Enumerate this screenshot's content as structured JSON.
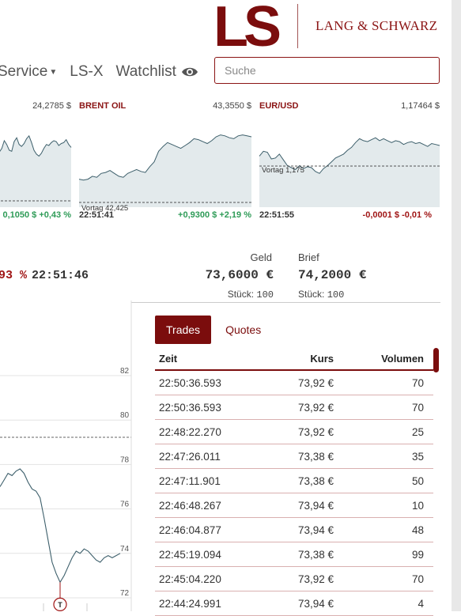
{
  "header": {
    "logo_mark": "LS",
    "brand": "LANG & SCHWARZ",
    "nav": [
      {
        "label": "Service",
        "has_caret": true
      },
      {
        "label": "LS-X",
        "has_caret": false
      },
      {
        "label": "Watchlist",
        "icon": "eye-icon"
      }
    ],
    "search_placeholder": "Suche"
  },
  "tickers": [
    {
      "name": "",
      "price": "24,2785 $",
      "time": "",
      "change": "0,1050 $ +0,43 %",
      "direction": "up",
      "series": [
        55,
        62,
        66,
        74,
        70,
        64,
        63,
        73,
        77,
        70,
        68,
        71,
        76,
        79,
        72,
        64,
        60,
        58,
        61,
        66,
        70,
        69,
        72,
        74,
        73,
        69,
        71,
        72,
        75,
        70,
        67
      ]
    },
    {
      "name": "BRENT OIL",
      "price": "43,3550 $",
      "time": "22:51:41",
      "change": "+0,9300 $ +2,19 %",
      "direction": "up",
      "prev_label": "Vortag 42,425",
      "series": [
        34,
        33,
        34,
        37,
        36,
        40,
        41,
        43,
        40,
        37,
        36,
        40,
        42,
        44,
        42,
        41,
        47,
        52,
        63,
        68,
        72,
        70,
        68,
        66,
        69,
        72,
        76,
        75,
        73,
        71,
        74,
        78,
        80,
        79,
        77,
        76,
        79,
        80,
        79,
        78
      ]
    },
    {
      "name": "EUR/USD",
      "price": "1,17464 $",
      "time": "22:51:55",
      "change": "-0,0001 $ -0,01 %",
      "direction": "down",
      "prev_label": "Vortag 1,175",
      "series": [
        58,
        63,
        62,
        55,
        56,
        60,
        54,
        48,
        46,
        44,
        48,
        45,
        47,
        46,
        42,
        40,
        45,
        48,
        52,
        56,
        58,
        60,
        64,
        67,
        72,
        76,
        74,
        73,
        75,
        77,
        74,
        76,
        74,
        72,
        74,
        73,
        70,
        72,
        73,
        71,
        72,
        70,
        68,
        71,
        70,
        69
      ]
    }
  ],
  "quote": {
    "pct": "93 %",
    "time": "22:51:46",
    "geld_label": "Geld",
    "geld_value": "73,6000 €",
    "brief_label": "Brief",
    "brief_value": "74,2000 €",
    "stueck_label": "Stück:",
    "geld_stueck": "100",
    "brief_stueck": "100"
  },
  "big_chart": {
    "y_ticks": [
      "82",
      "80",
      "78",
      "76",
      "74",
      "72"
    ],
    "marker": "T",
    "series": [
      77.0,
      77.3,
      77.6,
      77.5,
      77.7,
      77.8,
      77.6,
      77.2,
      76.9,
      76.8,
      76.5,
      75.6,
      74.6,
      73.6,
      73.1,
      72.7,
      73.0,
      73.4,
      73.8,
      74.1,
      74.0,
      74.2,
      74.1,
      73.9,
      73.7,
      73.6,
      73.8,
      73.9,
      73.8,
      73.9,
      74.0
    ]
  },
  "trades": {
    "tabs": [
      "Trades",
      "Quotes"
    ],
    "active_tab": "Trades",
    "columns": [
      "Zeit",
      "Kurs",
      "Volumen"
    ],
    "rows": [
      [
        "22:50:36.593",
        "73,92 €",
        "70"
      ],
      [
        "22:50:36.593",
        "73,92 €",
        "70"
      ],
      [
        "22:48:22.270",
        "73,92 €",
        "25"
      ],
      [
        "22:47:26.011",
        "73,38 €",
        "35"
      ],
      [
        "22:47:11.901",
        "73,38 €",
        "50"
      ],
      [
        "22:46:48.267",
        "73,94 €",
        "10"
      ],
      [
        "22:46:04.877",
        "73,94 €",
        "48"
      ],
      [
        "22:45:19.094",
        "73,38 €",
        "99"
      ],
      [
        "22:45:04.220",
        "73,92 €",
        "70"
      ],
      [
        "22:44:24.991",
        "73,94 €",
        "4"
      ]
    ]
  },
  "colors": {
    "brand": "#7b0d0d",
    "positive": "#2e9b57",
    "negative": "#a01515",
    "chart_fill": "#e3eaec",
    "chart_line": "#3d5f6b"
  }
}
